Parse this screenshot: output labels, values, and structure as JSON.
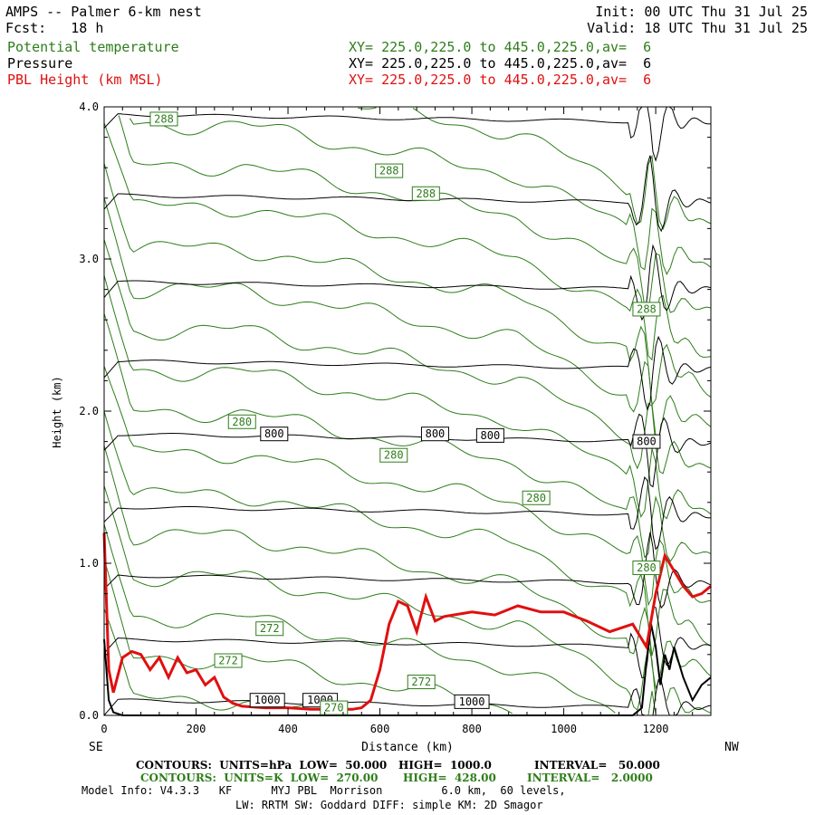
{
  "header": {
    "title": "AMPS -- Palmer 6-km nest",
    "forecast": "Fcst:   18 h",
    "init": "Init: 00 UTC Thu 31 Jul 25",
    "valid": "Valid: 18 UTC Thu 31 Jul 25"
  },
  "fields": [
    {
      "name": "Potential temperature",
      "xy": "XY= 225.0,225.0 to 445.0,225.0,av=  6",
      "color": "#2e7d1a"
    },
    {
      "name": "Pressure",
      "xy": "XY= 225.0,225.0 to 445.0,225.0,av=  6",
      "color": "#000000"
    },
    {
      "name": "PBL Height (km MSL)",
      "xy": "XY= 225.0,225.0 to 445.0,225.0,av=  6",
      "color": "#e01010"
    }
  ],
  "chart_data": {
    "type": "line",
    "xlabel": "Distance (km)",
    "ylabel": "Height (km)",
    "xlim": [
      0,
      1320
    ],
    "ylim": [
      0,
      4.0
    ],
    "x_ticks": [
      0,
      200,
      400,
      600,
      800,
      1000,
      1200
    ],
    "y_ticks": [
      0.0,
      1.0,
      2.0,
      3.0,
      4.0
    ],
    "y_tick_labels": [
      "0.0",
      "1.0",
      "2.0",
      "3.0",
      "4.0"
    ],
    "left_end_label": "SE",
    "right_end_label": "NW",
    "pbl_height": {
      "x": [
        0,
        10,
        20,
        40,
        60,
        80,
        100,
        120,
        140,
        160,
        180,
        200,
        220,
        240,
        260,
        280,
        300,
        350,
        400,
        450,
        500,
        540,
        560,
        580,
        600,
        620,
        640,
        660,
        680,
        700,
        720,
        740,
        760,
        800,
        850,
        900,
        950,
        1000,
        1050,
        1100,
        1150,
        1180,
        1200,
        1220,
        1240,
        1260,
        1280,
        1300,
        1320
      ],
      "y": [
        1.2,
        0.3,
        0.15,
        0.38,
        0.42,
        0.4,
        0.3,
        0.38,
        0.25,
        0.38,
        0.28,
        0.3,
        0.2,
        0.25,
        0.12,
        0.08,
        0.06,
        0.05,
        0.05,
        0.04,
        0.04,
        0.04,
        0.05,
        0.1,
        0.3,
        0.6,
        0.75,
        0.72,
        0.55,
        0.78,
        0.62,
        0.65,
        0.66,
        0.68,
        0.66,
        0.72,
        0.68,
        0.68,
        0.62,
        0.55,
        0.6,
        0.45,
        0.8,
        1.05,
        0.95,
        0.85,
        0.78,
        0.8,
        0.85
      ]
    },
    "terrain": {
      "x": [
        0,
        10,
        20,
        40,
        200,
        400,
        600,
        800,
        1000,
        1100,
        1150,
        1170,
        1180,
        1190,
        1200,
        1210,
        1220,
        1230,
        1240,
        1260,
        1280,
        1300,
        1320
      ],
      "y": [
        0.5,
        0.1,
        0.02,
        0.0,
        0.0,
        0.0,
        0.0,
        0.0,
        0.0,
        0.0,
        0.0,
        0.05,
        0.35,
        0.6,
        0.45,
        0.2,
        0.4,
        0.3,
        0.45,
        0.25,
        0.1,
        0.2,
        0.25
      ]
    },
    "pressure_labels": [
      {
        "text": "800",
        "x": 370,
        "y": 1.85
      },
      {
        "text": "800",
        "x": 720,
        "y": 1.85
      },
      {
        "text": "800",
        "x": 840,
        "y": 1.84
      },
      {
        "text": "800",
        "x": 1180,
        "y": 1.8
      },
      {
        "text": "1000",
        "x": 355,
        "y": 0.1
      },
      {
        "text": "1000",
        "x": 470,
        "y": 0.1
      },
      {
        "text": "1000",
        "x": 800,
        "y": 0.09
      }
    ],
    "theta_labels": [
      {
        "text": "288",
        "x": 130,
        "y": 3.92
      },
      {
        "text": "288",
        "x": 620,
        "y": 3.58
      },
      {
        "text": "288",
        "x": 700,
        "y": 3.43
      },
      {
        "text": "288",
        "x": 1180,
        "y": 2.67
      },
      {
        "text": "280",
        "x": 300,
        "y": 1.93
      },
      {
        "text": "280",
        "x": 630,
        "y": 1.71
      },
      {
        "text": "280",
        "x": 940,
        "y": 1.43
      },
      {
        "text": "280",
        "x": 1180,
        "y": 0.97
      },
      {
        "text": "272",
        "x": 360,
        "y": 0.57
      },
      {
        "text": "272",
        "x": 270,
        "y": 0.36
      },
      {
        "text": "272",
        "x": 690,
        "y": 0.22
      },
      {
        "text": "270",
        "x": 500,
        "y": 0.05
      }
    ]
  },
  "footer": {
    "line1_parts": [
      "CONTOURS:  UNITS=hPa  LOW=  50.000",
      "HIGH=  1000.0",
      "INTERVAL=   50.000"
    ],
    "line2_parts": [
      "CONTOURS:  UNITS=K  LOW=  270.00",
      "HIGH=  428.00",
      "INTERVAL=   2.0000"
    ],
    "model_info": "Model Info: V4.3.3   KF      MYJ PBL  Morrison         6.0 km,  60 levels,",
    "model_info2": "LW: RRTM SW: Goddard DIFF: simple KM: 2D Smagor"
  }
}
